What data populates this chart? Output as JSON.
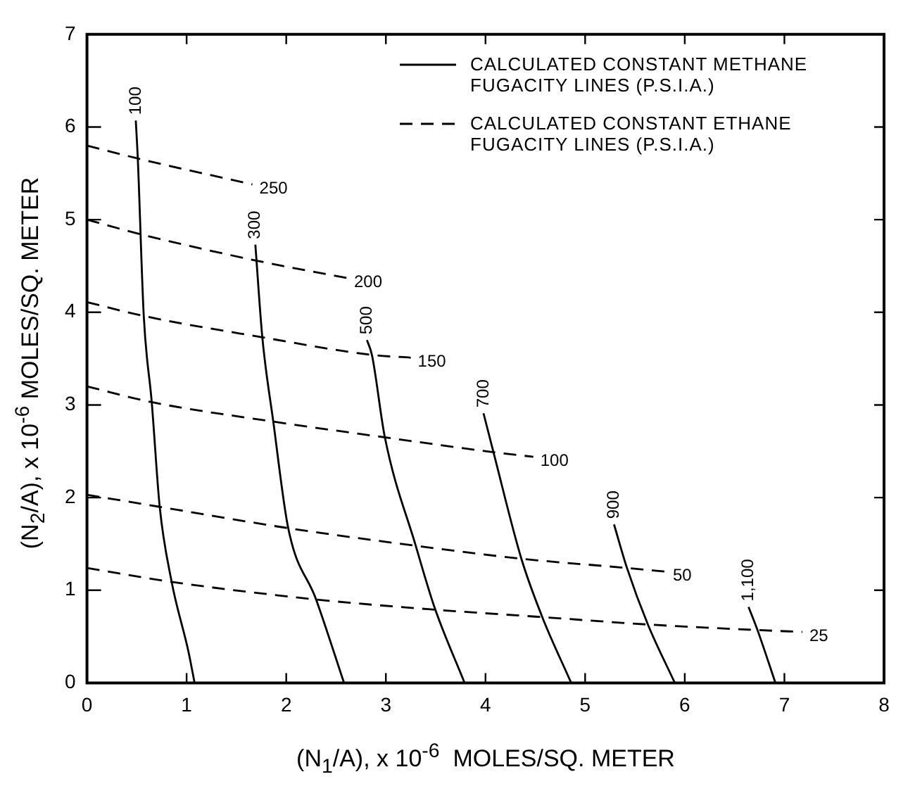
{
  "chart_data": {
    "type": "line",
    "xlabel": "(N$_{1}$/A), x 10$^{-6}$  MOLES/SQ. METER",
    "ylabel": "(N$_{2}$/A), x 10$^{-6}$ MOLES/SQ. METER",
    "xlim": [
      0,
      8
    ],
    "ylim": [
      0,
      7
    ],
    "xticks": [
      0,
      1,
      2,
      3,
      4,
      5,
      6,
      7,
      8
    ],
    "yticks": [
      0,
      1,
      2,
      3,
      4,
      5,
      6,
      7
    ],
    "grid": false,
    "legend": "top right",
    "marker": "none",
    "annotations": [
      {
        "text": "100",
        "x": 0.49,
        "y": 6.07
      },
      {
        "text": "300",
        "x": 1.69,
        "y": 4.73
      },
      {
        "text": "500",
        "x": 2.81,
        "y": 3.7
      },
      {
        "text": "700",
        "x": 3.98,
        "y": 2.91
      },
      {
        "text": "900",
        "x": 5.29,
        "y": 1.71
      },
      {
        "text": "1,100",
        "x": 6.64,
        "y": 0.82
      },
      {
        "text": "250",
        "x": 1.66,
        "y": 5.38
      },
      {
        "text": "200",
        "x": 2.61,
        "y": 4.37
      },
      {
        "text": "150",
        "x": 3.25,
        "y": 3.51
      },
      {
        "text": "100",
        "x": 4.48,
        "y": 2.44
      },
      {
        "text": "50",
        "x": 5.81,
        "y": 1.2
      },
      {
        "text": "25",
        "x": 7.18,
        "y": 0.55
      }
    ],
    "series": [
      {
        "name": "CALCULATED CONSTANT METHANE FUGACITY LINES (P.S.I.A.)",
        "color": "#000000",
        "line_style": "solid",
        "x": [
          0.49,
          0.51,
          0.57,
          0.65,
          0.73,
          0.85,
          1.02,
          1.08
        ],
        "values": [
          6.07,
          5.66,
          3.96,
          3.03,
          1.9,
          1.09,
          0.33,
          0
        ]
      },
      {
        "color": "#000000",
        "line_style": "solid",
        "x": [
          1.69,
          1.76,
          1.87,
          2.02,
          2.3,
          2.58
        ],
        "values": [
          4.73,
          3.73,
          2.82,
          1.67,
          0.9,
          0
        ]
      },
      {
        "color": "#000000",
        "line_style": "solid",
        "x": [
          2.81,
          2.86,
          2.99,
          3.3,
          3.49,
          3.79
        ],
        "values": [
          3.7,
          3.54,
          2.65,
          1.48,
          0.81,
          0
        ]
      },
      {
        "color": "#000000",
        "line_style": "solid",
        "x": [
          3.98,
          4.08,
          4.36,
          4.57,
          4.86
        ],
        "values": [
          2.91,
          2.49,
          1.34,
          0.71,
          0
        ]
      },
      {
        "color": "#000000",
        "line_style": "solid",
        "x": [
          5.29,
          5.42,
          5.63,
          5.9
        ],
        "values": [
          1.71,
          1.24,
          0.63,
          0
        ]
      },
      {
        "color": "#000000",
        "line_style": "solid",
        "x": [
          6.64,
          6.73,
          6.91
        ],
        "values": [
          0.82,
          0.57,
          0
        ]
      },
      {
        "name": "CALCULATED CONSTANT ETHANE FUGACITY LINES (P.S.I.A.)",
        "color": "#000000",
        "line_style": "dashed",
        "x": [
          0,
          0.51,
          1.66
        ],
        "values": [
          5.8,
          5.66,
          5.38
        ]
      },
      {
        "color": "#000000",
        "line_style": "dashed",
        "x": [
          0,
          0.51,
          1.69,
          2.61
        ],
        "values": [
          5,
          4.85,
          4.56,
          4.37
        ]
      },
      {
        "color": "#000000",
        "line_style": "dashed",
        "x": [
          0,
          0.57,
          1.76,
          2.86,
          3.25
        ],
        "values": [
          4.11,
          3.96,
          3.73,
          3.54,
          3.51
        ]
      },
      {
        "color": "#000000",
        "line_style": "dashed",
        "x": [
          0,
          0.65,
          1.87,
          2.99,
          4.08,
          4.48
        ],
        "values": [
          3.2,
          3.03,
          2.82,
          2.65,
          2.49,
          2.44
        ]
      },
      {
        "color": "#000000",
        "line_style": "dashed",
        "x": [
          0,
          0.73,
          2.02,
          3.3,
          4.36,
          5.42,
          5.81
        ],
        "values": [
          2.03,
          1.9,
          1.67,
          1.48,
          1.34,
          1.24,
          1.2
        ]
      },
      {
        "color": "#000000",
        "line_style": "dashed",
        "x": [
          0,
          0.85,
          2.3,
          3.49,
          4.57,
          5.63,
          6.73,
          7.18
        ],
        "values": [
          1.24,
          1.09,
          0.9,
          0.79,
          0.71,
          0.63,
          0.57,
          0.55
        ]
      }
    ]
  }
}
